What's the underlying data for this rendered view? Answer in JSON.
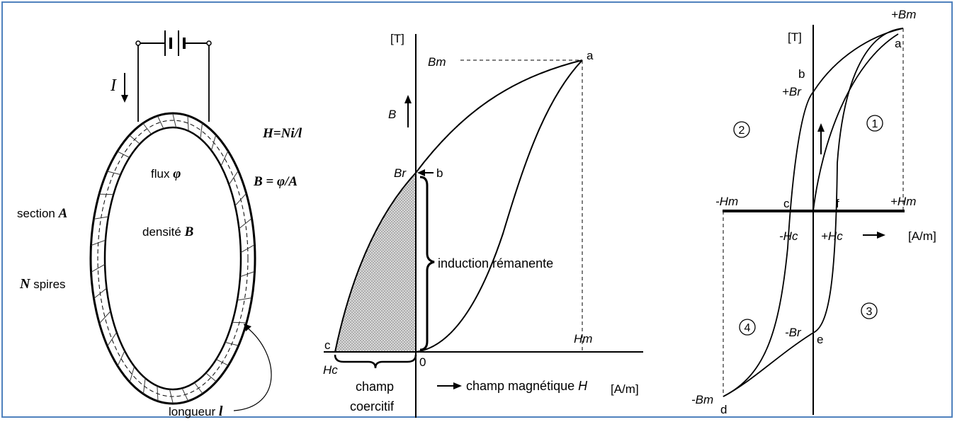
{
  "colors": {
    "frame": "#4f81bd",
    "ink": "#000000",
    "shade": "#cccccc"
  },
  "toroid": {
    "current": "I",
    "field_formula": "H=Ni/l",
    "flux_formula": "B = φ/A",
    "flux_label": "flux",
    "flux_symbol": "φ",
    "density_label": "densité",
    "density_symbol": "B",
    "section_label": "section",
    "section_symbol": "A",
    "turns_symbol": "N",
    "turns_label": "spires",
    "length_label": "longueur",
    "length_symbol": "l"
  },
  "curve1": {
    "axis_unit_y": "[T]",
    "axis_unit_x": "[A/m]",
    "bm": "Bm",
    "hm": "Hm",
    "br": "Br",
    "hc": "Hc",
    "b_label": "B",
    "origin": "0",
    "pt_a": "a",
    "pt_b": "b",
    "pt_c": "c",
    "remanent": "induction rémanente",
    "coercive_line1": "champ",
    "coercive_line2": "coercitif",
    "field_label": "champ magnétique",
    "field_symbol": "H"
  },
  "curve2": {
    "axis_unit_y": "[T]",
    "axis_unit_x": "[A/m]",
    "plus_bm": "+Bm",
    "minus_bm": "-Bm",
    "plus_br": "+Br",
    "minus_br": "-Br",
    "plus_hm": "+Hm",
    "minus_hm": "-Hm",
    "plus_hc": "+Hc",
    "minus_hc": "-Hc",
    "pt_a": "a",
    "pt_b": "b",
    "pt_c": "c",
    "pt_d": "d",
    "pt_e": "e",
    "pt_f": "f",
    "q1": "1",
    "q2": "2",
    "q3": "3",
    "q4": "4"
  }
}
